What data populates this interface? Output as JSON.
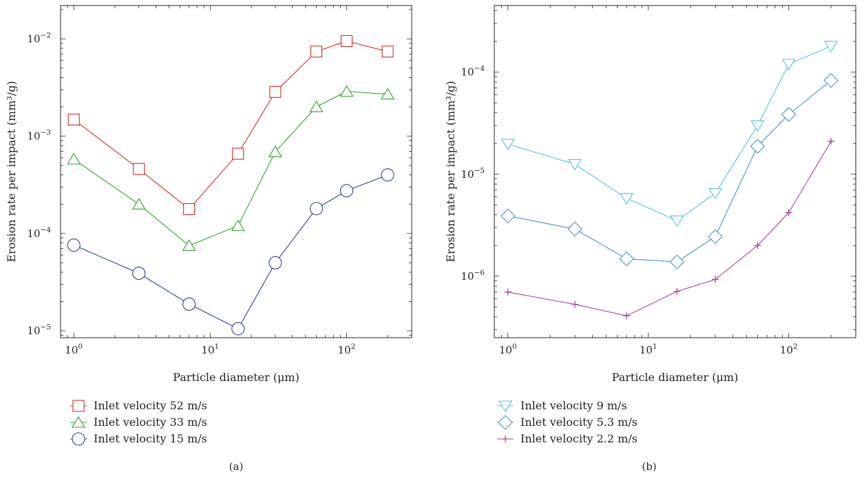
{
  "chart_data": [
    {
      "type": "line",
      "panel_label": "(a)",
      "xlabel": "Particle diameter (μm)",
      "ylabel": "Erosion rate per impact (mm³/g)",
      "xscale": "log",
      "yscale": "log",
      "xlim": [
        0.8,
        300
      ],
      "ylim": [
        8.5e-06,
        0.022
      ],
      "x_ticks": [
        {
          "base": "10",
          "exp": "0",
          "value": 1
        },
        {
          "base": "10",
          "exp": "1",
          "value": 10
        },
        {
          "base": "10",
          "exp": "2",
          "value": 100
        }
      ],
      "y_ticks": [
        {
          "base": "10",
          "exp": "−5",
          "value": 1e-05
        },
        {
          "base": "10",
          "exp": "−4",
          "value": 0.0001
        },
        {
          "base": "10",
          "exp": "−3",
          "value": 0.001
        },
        {
          "base": "10",
          "exp": "−2",
          "value": 0.01
        }
      ],
      "legend_position": "below",
      "series": [
        {
          "name": "Inlet velocity 52 m/s",
          "color": "#d62728",
          "marker": "square",
          "x": [
            1,
            3,
            7,
            16,
            30,
            60,
            100,
            200
          ],
          "y": [
            0.00148,
            0.00046,
            0.000178,
            0.00066,
            0.00285,
            0.0074,
            0.0095,
            0.0074
          ]
        },
        {
          "name": "Inlet velocity 33 m/s",
          "color": "#2ca02c",
          "marker": "triangle-up",
          "x": [
            1,
            3,
            7,
            16,
            30,
            60,
            100,
            200
          ],
          "y": [
            0.00058,
            0.0002,
            7.5e-05,
            0.00012,
            0.00069,
            0.002,
            0.00288,
            0.0027
          ]
        },
        {
          "name": "Inlet velocity 15 m/s",
          "color": "#2a3f9a",
          "marker": "circle",
          "x": [
            1,
            3,
            7,
            16,
            30,
            60,
            100,
            200
          ],
          "y": [
            7.6e-05,
            3.9e-05,
            1.88e-05,
            1.05e-05,
            5e-05,
            0.00018,
            0.000275,
            0.0004
          ]
        }
      ]
    },
    {
      "type": "line",
      "panel_label": "(b)",
      "xlabel": "Particle diameter (μm)",
      "ylabel": "Erosion rate per impact (mm³/g)",
      "xscale": "log",
      "yscale": "log",
      "xlim": [
        0.8,
        300
      ],
      "ylim": [
        2.5e-07,
        0.00045
      ],
      "x_ticks": [
        {
          "base": "10",
          "exp": "0",
          "value": 1
        },
        {
          "base": "10",
          "exp": "1",
          "value": 10
        },
        {
          "base": "10",
          "exp": "2",
          "value": 100
        }
      ],
      "y_ticks": [
        {
          "base": "10",
          "exp": "−6",
          "value": 1e-06
        },
        {
          "base": "10",
          "exp": "−5",
          "value": 1e-05
        },
        {
          "base": "10",
          "exp": "−4",
          "value": 0.0001
        }
      ],
      "legend_position": "below",
      "series": [
        {
          "name": "Inlet velocity 9 m/s",
          "color": "#4fc4d0",
          "marker": "triangle-down",
          "x": [
            1,
            3,
            7,
            16,
            30,
            60,
            100,
            200
          ],
          "y": [
            1.97e-05,
            1.25e-05,
            5.8e-06,
            3.5e-06,
            6.5e-06,
            3e-05,
            0.00012,
            0.00018
          ]
        },
        {
          "name": "Inlet velocity 5.3 m/s",
          "color": "#4a90c8",
          "marker": "diamond",
          "x": [
            1,
            3,
            7,
            16,
            30,
            60,
            100,
            200
          ],
          "y": [
            3.9e-06,
            2.9e-06,
            1.48e-06,
            1.38e-06,
            2.45e-06,
            1.88e-05,
            3.85e-05,
            8.3e-05
          ]
        },
        {
          "name": "Inlet velocity 2.2 m/s",
          "color": "#a0449a",
          "marker": "plus",
          "x": [
            1,
            3,
            7,
            16,
            30,
            60,
            100,
            200
          ],
          "y": [
            7e-07,
            5.3e-07,
            4.1e-07,
            7.1e-07,
            9.3e-07,
            2e-06,
            4.2e-06,
            2.1e-05
          ]
        }
      ]
    }
  ]
}
